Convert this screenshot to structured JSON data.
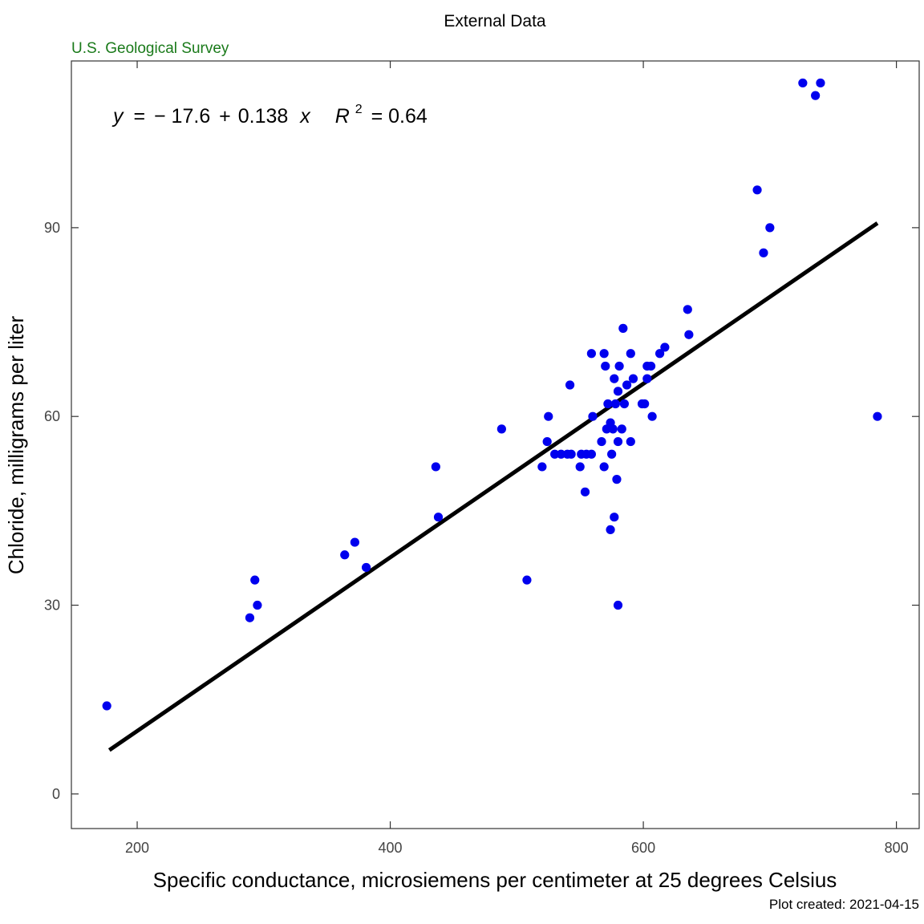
{
  "chart_data": {
    "type": "scatter",
    "title": "External Data",
    "subtitle": "U.S. Geological Survey",
    "xlabel": "Specific conductance, microsiemens per centimeter at 25 degrees Celsius",
    "ylabel": "Chloride, milligrams per liter",
    "caption": "Plot created: 2021-04-15",
    "xlim": [
      148,
      818
    ],
    "ylim": [
      -5.5,
      116.5
    ],
    "xticks": [
      200,
      400,
      600,
      800
    ],
    "yticks": [
      0,
      30,
      60,
      90
    ],
    "grid": false,
    "point_color": "#0000ee",
    "line_color": "#000000",
    "fit": {
      "intercept": -17.6,
      "slope": 0.138,
      "r2": 0.64,
      "x_range": [
        178,
        785
      ],
      "label": {
        "y": "y",
        "eq": "=",
        "intercept": "− 17.6",
        "plus": "+",
        "slope": "0.138",
        "x": "x",
        "r": "R",
        "r_exp": "2",
        "r2_value": "= 0.64"
      }
    },
    "points": [
      [
        176,
        14
      ],
      [
        289,
        28
      ],
      [
        293,
        34
      ],
      [
        295,
        30
      ],
      [
        364,
        38
      ],
      [
        372,
        40
      ],
      [
        381,
        36
      ],
      [
        436,
        52
      ],
      [
        438,
        44
      ],
      [
        488,
        58
      ],
      [
        508,
        34
      ],
      [
        520,
        52
      ],
      [
        524,
        56
      ],
      [
        525,
        60
      ],
      [
        530,
        54
      ],
      [
        535,
        54
      ],
      [
        540,
        54
      ],
      [
        542,
        65
      ],
      [
        543,
        54
      ],
      [
        550,
        52
      ],
      [
        551,
        54
      ],
      [
        554,
        48
      ],
      [
        555,
        54
      ],
      [
        559,
        54
      ],
      [
        559,
        70
      ],
      [
        560,
        60
      ],
      [
        567,
        56
      ],
      [
        569,
        52
      ],
      [
        569,
        70
      ],
      [
        570,
        68
      ],
      [
        571,
        58
      ],
      [
        572,
        62
      ],
      [
        574,
        42
      ],
      [
        574,
        59
      ],
      [
        575,
        54
      ],
      [
        576,
        58
      ],
      [
        577,
        44
      ],
      [
        577,
        66
      ],
      [
        578,
        62
      ],
      [
        579,
        50
      ],
      [
        580,
        30
      ],
      [
        580,
        56
      ],
      [
        580,
        64
      ],
      [
        581,
        68
      ],
      [
        583,
        58
      ],
      [
        584,
        74
      ],
      [
        585,
        62
      ],
      [
        587,
        65
      ],
      [
        590,
        56
      ],
      [
        590,
        70
      ],
      [
        592,
        66
      ],
      [
        599,
        62
      ],
      [
        601,
        62
      ],
      [
        603,
        66
      ],
      [
        603,
        68
      ],
      [
        606,
        68
      ],
      [
        607,
        60
      ],
      [
        613,
        70
      ],
      [
        617,
        71
      ],
      [
        635,
        77
      ],
      [
        636,
        73
      ],
      [
        690,
        96
      ],
      [
        695,
        86
      ],
      [
        700,
        90
      ],
      [
        726,
        113
      ],
      [
        736,
        111
      ],
      [
        740,
        113
      ],
      [
        785,
        60
      ]
    ]
  }
}
